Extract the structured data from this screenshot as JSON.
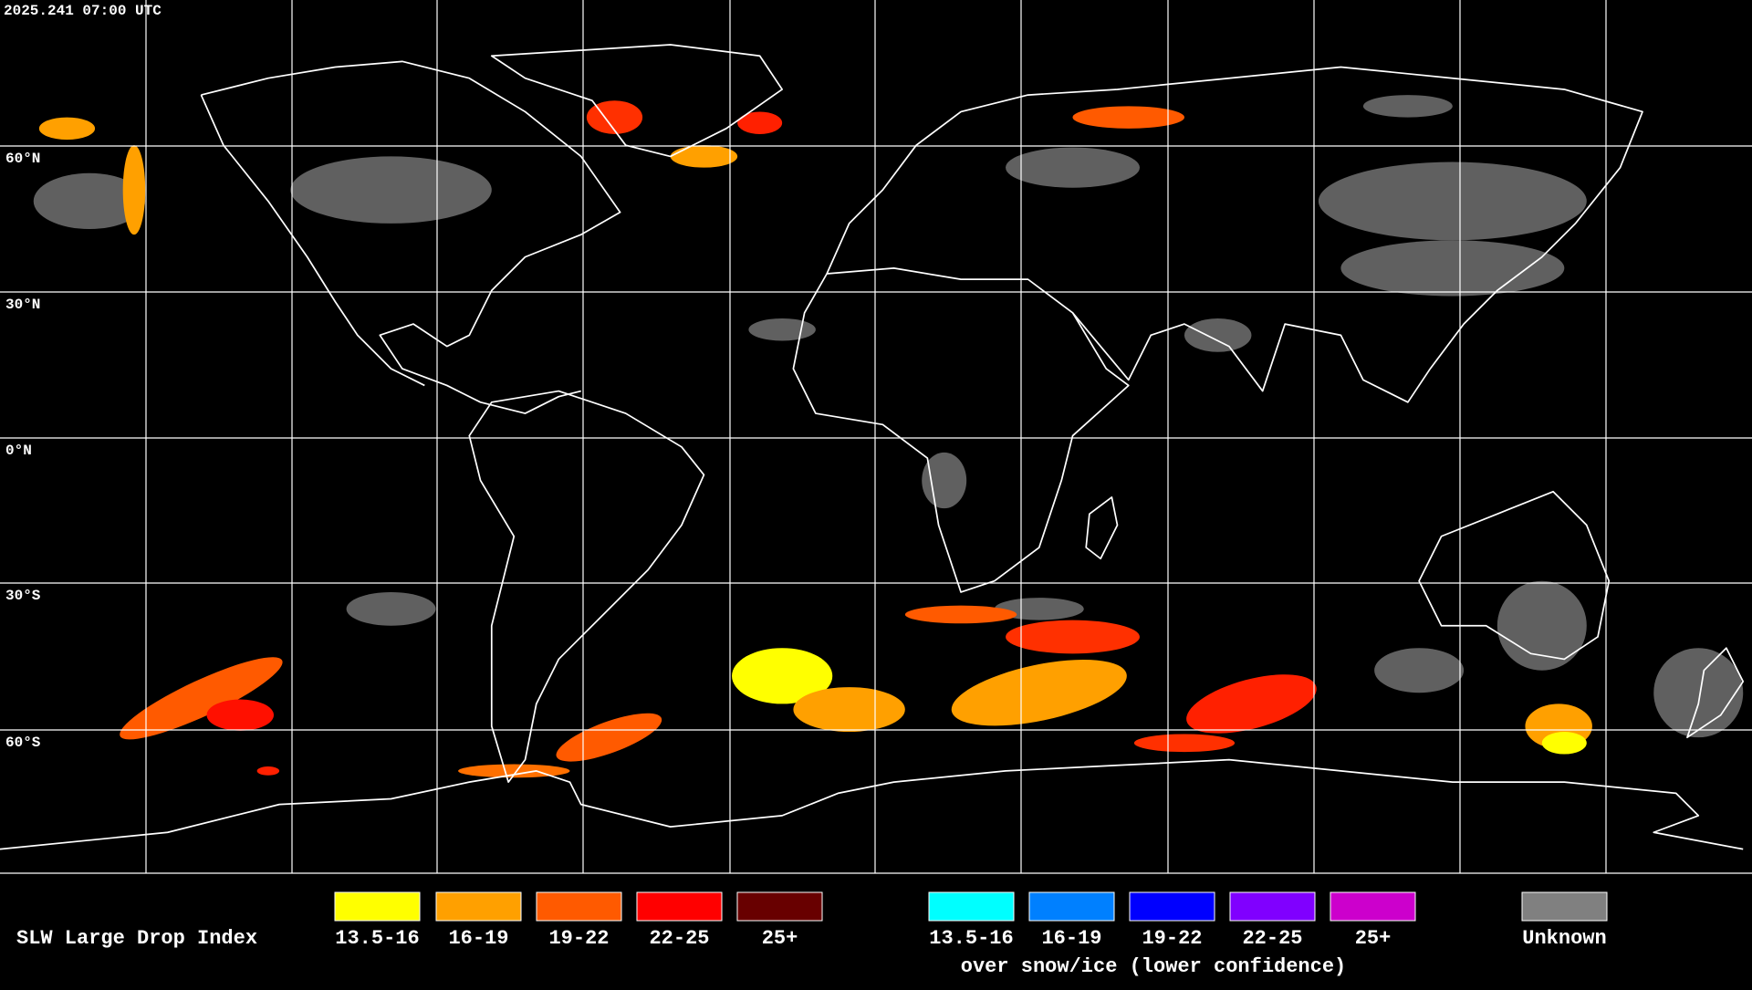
{
  "header": {
    "timestamp": "2025.241 07:00 UTC"
  },
  "map": {
    "latitude_labels": [
      "60°N",
      "30°N",
      "0°N",
      "30°S",
      "60°S"
    ]
  },
  "legend": {
    "title": "SLW Large Drop Index",
    "liquid": [
      {
        "label": "13.5-16",
        "color": "#ffff00"
      },
      {
        "label": "16-19",
        "color": "#ffa000"
      },
      {
        "label": "19-22",
        "color": "#ff5a00"
      },
      {
        "label": "22-25",
        "color": "#ff0000"
      },
      {
        "label": "25+",
        "color": "#680000"
      }
    ],
    "snow_ice": [
      {
        "label": "13.5-16",
        "color": "#00ffff"
      },
      {
        "label": "16-19",
        "color": "#0080ff"
      },
      {
        "label": "19-22",
        "color": "#0000ff"
      },
      {
        "label": "22-25",
        "color": "#8000ff"
      },
      {
        "label": "25+",
        "color": "#cc00cc"
      }
    ],
    "snow_ice_note": "over snow/ice (lower confidence)",
    "unknown": {
      "label": "Unknown",
      "color": "#808080"
    }
  }
}
